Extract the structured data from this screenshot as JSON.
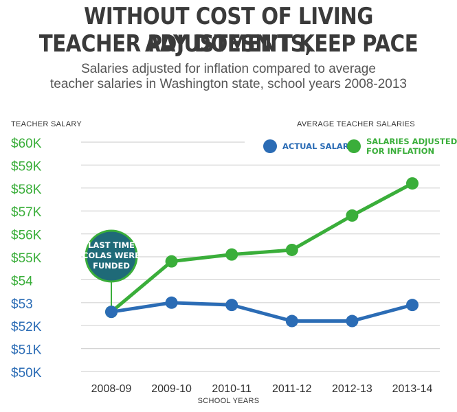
{
  "header": {
    "title_line1": "WITHOUT COST OF LIVING ADJUSTMENTS,",
    "title_line2": "TEACHER PAY DOESN’T KEEP PACE",
    "subtitle_line1": "Salaries adjusted for inflation compared to average",
    "subtitle_line2": "teacher salaries in Washington state, school years 2008-2013"
  },
  "colors": {
    "actual": "#2b6cb5",
    "inflation": "#3aae3a",
    "grid": "#d4d4d4"
  },
  "annotation": {
    "lines": [
      "LAST TIME",
      "COLAS WERE",
      "FUNDED"
    ]
  },
  "chart_data": {
    "type": "line",
    "ylabel": "TEACHER SALARY",
    "xlabel": "SCHOOL YEARS",
    "legend_title": "AVERAGE TEACHER SALARIES",
    "legend_position": "top-right",
    "grid": true,
    "ylim": [
      50,
      60
    ],
    "y_ticks": [
      {
        "value": 60,
        "label": "$60K"
      },
      {
        "value": 59,
        "label": "$59K"
      },
      {
        "value": 58,
        "label": "$58K"
      },
      {
        "value": 57,
        "label": "$57K"
      },
      {
        "value": 56,
        "label": "$56K"
      },
      {
        "value": 55,
        "label": "$55K"
      },
      {
        "value": 54,
        "label": "$54"
      },
      {
        "value": 53,
        "label": "$53"
      },
      {
        "value": 52,
        "label": "$52K"
      },
      {
        "value": 51,
        "label": "$51K"
      },
      {
        "value": 50,
        "label": "$50K"
      }
    ],
    "categories": [
      "2008-09",
      "2009-10",
      "2010-11",
      "2011-12",
      "2012-13",
      "2013-14"
    ],
    "series": [
      {
        "name": "ACTUAL SALARY",
        "values": [
          52.6,
          53.0,
          52.9,
          52.2,
          52.2,
          52.9
        ]
      },
      {
        "name": "SALARIES ADJUSTED FOR INFLATION",
        "values": [
          52.6,
          54.8,
          55.1,
          55.3,
          56.8,
          58.2
        ]
      }
    ],
    "legend": [
      {
        "lines": [
          "ACTUAL SALARY"
        ]
      },
      {
        "lines": [
          "SALARIES ADJUSTED",
          "FOR INFLATION"
        ]
      }
    ]
  }
}
